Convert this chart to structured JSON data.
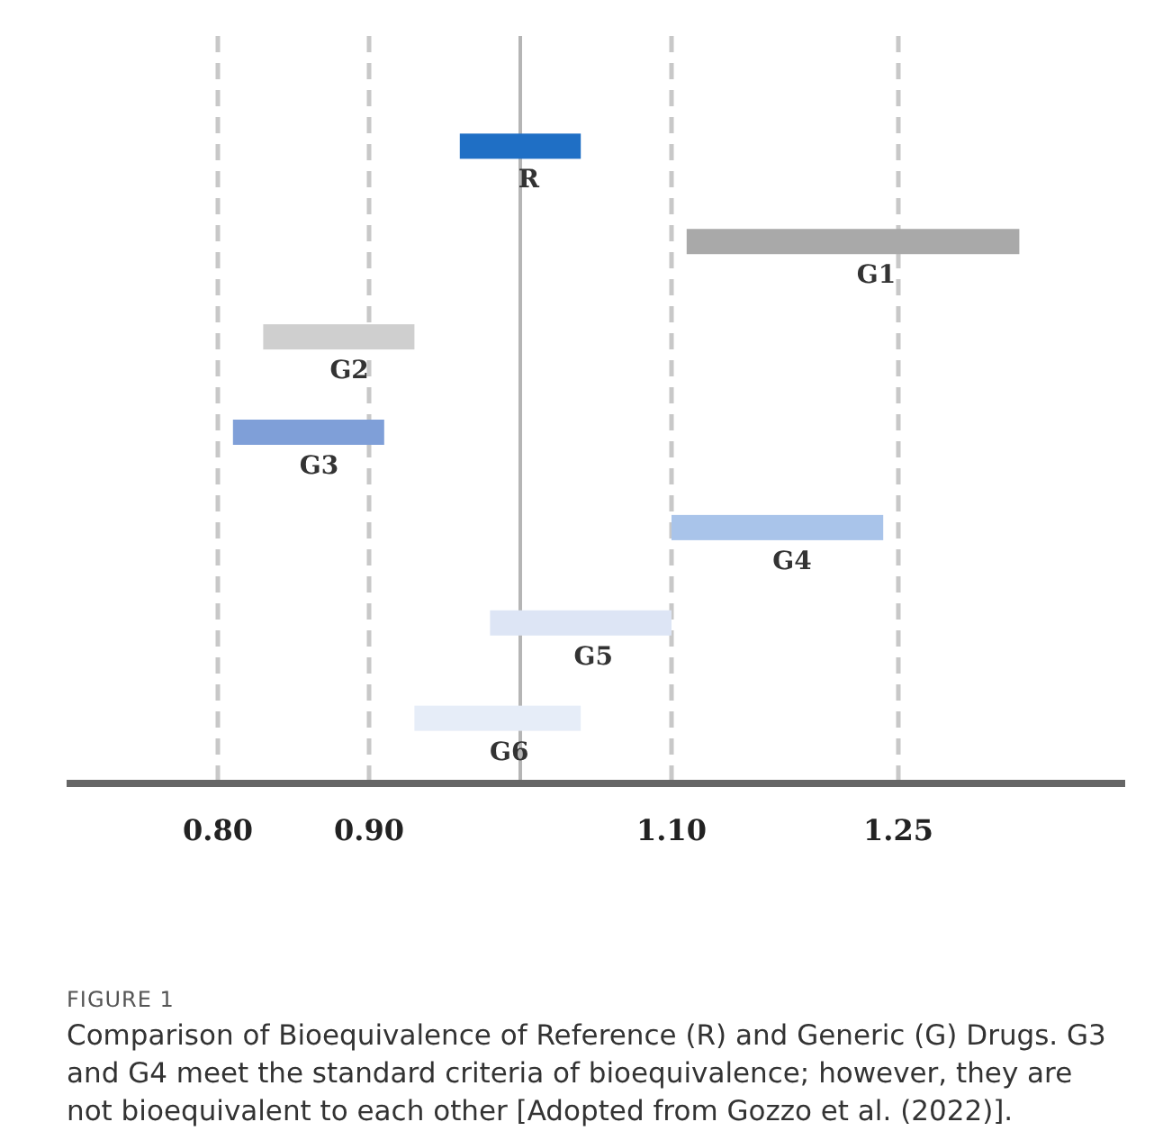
{
  "chart_data": {
    "type": "bar",
    "orientation": "horizontal",
    "categories": [
      "R",
      "G1",
      "G2",
      "G3",
      "G4",
      "G5",
      "G6"
    ],
    "base": [
      0.96,
      1.11,
      0.83,
      0.81,
      1.1,
      0.98,
      0.93
    ],
    "values": [
      0.08,
      0.22,
      0.1,
      0.1,
      0.14,
      0.12,
      0.11
    ],
    "colors": [
      "#1f6fc5",
      "#a9a9a9",
      "#cfcfcf",
      "#7f9fd8",
      "#a9c4ea",
      "#dde5f5",
      "#e6edf8"
    ],
    "xlim": [
      0.7,
      1.4
    ],
    "xticks": [
      {
        "value": 0.8,
        "label": "0.80"
      },
      {
        "value": 0.9,
        "label": "0.90"
      },
      {
        "value": 1.1,
        "label": "1.10"
      },
      1.25
    ],
    "grid": "x",
    "ref_lines": [
      {
        "axis": "x",
        "value": 1.0,
        "color": "#b5b5b5",
        "line_style": "solid"
      }
    ],
    "annotations": [
      "FIGURE 1",
      "Comparison of Bioequivalence of Reference (R) and Generic (G) Drugs. G3 and G4 meet the standard criteria of bioequivalence; however, they are not bioequivalent to each other [Adopted from Gozzo et al. (2022)]."
    ]
  }
}
